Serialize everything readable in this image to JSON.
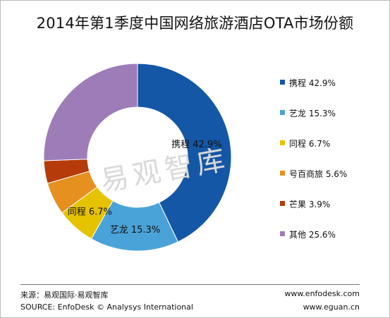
{
  "title": "2014年第1季度中国网络旅游酒店OTA市场份额",
  "watermark": "易观智库",
  "chart_data": {
    "type": "pie",
    "title": "2014年第1季度中国网络旅游酒店OTA市场份额",
    "donut": true,
    "start_angle_deg": 0,
    "direction": "clockwise",
    "legend_position": "right",
    "slices": [
      {
        "name": "携程",
        "value": 42.9,
        "label": "42.9%",
        "color": "#1457a6",
        "label_on_chart": true
      },
      {
        "name": "艺龙",
        "value": 15.3,
        "label": "15.3%",
        "color": "#4aa3d8",
        "label_on_chart": true
      },
      {
        "name": "同程",
        "value": 6.7,
        "label": "6.7%",
        "color": "#e6c300",
        "label_on_chart": true
      },
      {
        "name": "号百商旅",
        "value": 5.6,
        "label": "5.6%",
        "color": "#e5901f",
        "label_on_chart": false
      },
      {
        "name": "芒果",
        "value": 3.9,
        "label": "3.9%",
        "color": "#b53b0a",
        "label_on_chart": false
      },
      {
        "name": "其他",
        "value": 25.6,
        "label": "25.6%",
        "color": "#9d7cb8",
        "label_on_chart": false
      }
    ]
  },
  "legend": {
    "items": [
      {
        "text": "携程 42.9%",
        "color": "#1457a6"
      },
      {
        "text": "艺龙 15.3%",
        "color": "#4aa3d8"
      },
      {
        "text": "同程 6.7%",
        "color": "#e6c300"
      },
      {
        "text": "号百商旅 5.6%",
        "color": "#e5901f"
      },
      {
        "text": "芒果 3.9%",
        "color": "#b53b0a"
      },
      {
        "text": "其他 25.6%",
        "color": "#9d7cb8"
      }
    ]
  },
  "footer": {
    "source_cn": "来源：易观国际·易观智库",
    "source_en": "SOURCE: EnfoDesk © Analysys International",
    "url1": "www.enfodesk.com",
    "url2": "www.eguan.cn"
  }
}
